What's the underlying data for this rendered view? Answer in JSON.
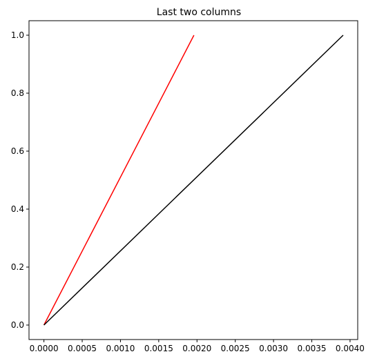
{
  "chart_data": {
    "type": "line",
    "title": "Last two columns",
    "xlabel": "",
    "ylabel": "",
    "xlim": [
      -0.000195,
      0.0041
    ],
    "ylim": [
      -0.05,
      1.05
    ],
    "grid": false,
    "x_ticks": [
      0.0,
      0.0005,
      0.001,
      0.0015,
      0.002,
      0.0025,
      0.003,
      0.0035,
      0.004
    ],
    "x_tick_labels": [
      "0.0000",
      "0.0005",
      "0.0010",
      "0.0015",
      "0.0020",
      "0.0025",
      "0.0030",
      "0.0035",
      "0.0040"
    ],
    "y_ticks": [
      0.0,
      0.2,
      0.4,
      0.6,
      0.8,
      1.0
    ],
    "y_tick_labels": [
      "0.0",
      "0.2",
      "0.4",
      "0.6",
      "0.8",
      "1.0"
    ],
    "series": [
      {
        "color": "#ff0000",
        "x": [
          0.0,
          0.00196
        ],
        "y": [
          0.0,
          1.0
        ]
      },
      {
        "color": "#000000",
        "x": [
          0.0,
          0.00391
        ],
        "y": [
          0.0,
          1.0
        ]
      }
    ]
  }
}
